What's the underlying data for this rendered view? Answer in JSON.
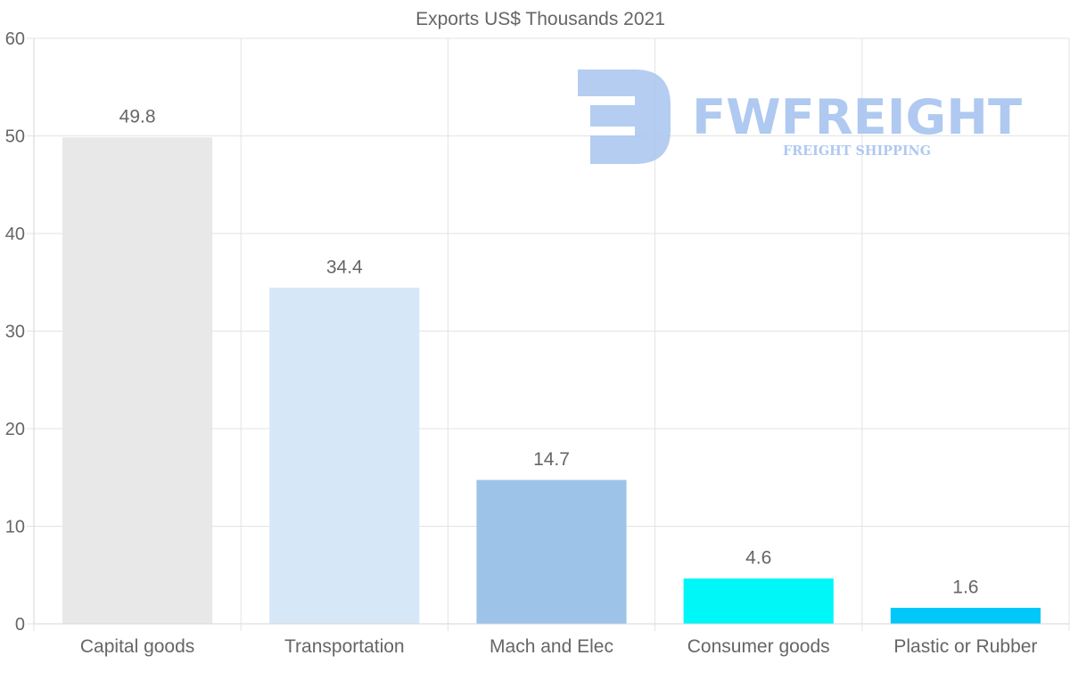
{
  "chart_data": {
    "type": "bar",
    "title": "Exports US$ Thousands 2021",
    "categories": [
      "Capital goods",
      "Transportation",
      "Mach and Elec",
      "Consumer goods",
      "Plastic or Rubber"
    ],
    "values": [
      49.8,
      34.4,
      14.7,
      4.6,
      1.6
    ],
    "data_labels": [
      "49.8",
      "34.4",
      "14.7",
      "4.6",
      "1.6"
    ],
    "colors": [
      "#e8e8e8",
      "#d6e7f8",
      "#9dc3e8",
      "#00f7f7",
      "#00c8f8"
    ],
    "ylim": [
      0,
      60
    ],
    "yticks": [
      "0",
      "10",
      "20",
      "30",
      "40",
      "50",
      "60"
    ],
    "xlabel": "",
    "ylabel": "",
    "grid": true
  },
  "watermark": {
    "brand": "FWFREIGHT",
    "tagline": "FREIGHT SHIPPING",
    "color": "#a7c4ef"
  }
}
